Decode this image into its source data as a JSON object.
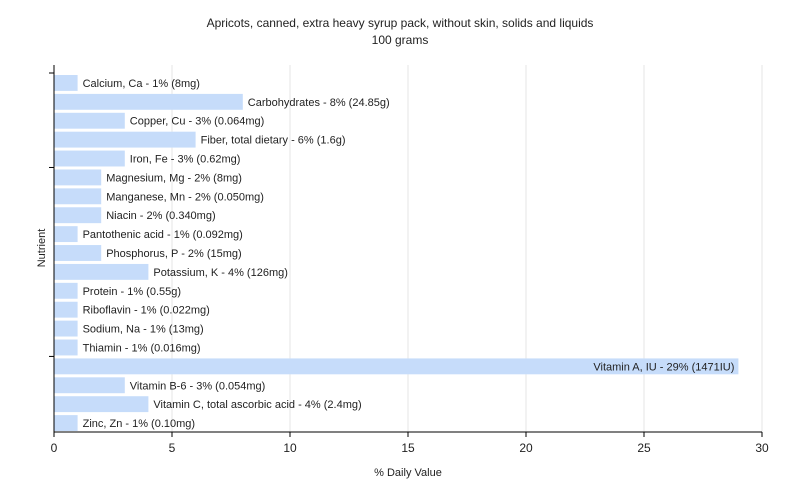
{
  "chart_data": {
    "type": "bar",
    "orientation": "horizontal",
    "title": "Apricots, canned, extra heavy syrup pack, without skin, solids and liquids",
    "subtitle": "100 grams",
    "xlabel": "% Daily Value",
    "ylabel": "Nutrient",
    "xlim": [
      0,
      30
    ],
    "xticks": [
      0,
      5,
      10,
      15,
      20,
      25,
      30
    ],
    "grid": true,
    "bar_color": "#c6dcfa",
    "categories": [
      "Calcium, Ca",
      "Carbohydrates",
      "Copper, Cu",
      "Fiber, total dietary",
      "Iron, Fe",
      "Magnesium, Mg",
      "Manganese, Mn",
      "Niacin",
      "Pantothenic acid",
      "Phosphorus, P",
      "Potassium, K",
      "Protein",
      "Riboflavin",
      "Sodium, Na",
      "Thiamin",
      "Vitamin A, IU",
      "Vitamin B-6",
      "Vitamin C, total ascorbic acid",
      "Zinc, Zn"
    ],
    "values": [
      1,
      8,
      3,
      6,
      3,
      2,
      2,
      2,
      1,
      2,
      4,
      1,
      1,
      1,
      1,
      29,
      3,
      4,
      1
    ],
    "labels": [
      "Calcium, Ca - 1% (8mg)",
      "Carbohydrates - 8% (24.85g)",
      "Copper, Cu - 3% (0.064mg)",
      "Fiber, total dietary - 6% (1.6g)",
      "Iron, Fe - 3% (0.62mg)",
      "Magnesium, Mg - 2% (8mg)",
      "Manganese, Mn - 2% (0.050mg)",
      "Niacin - 2% (0.340mg)",
      "Pantothenic acid - 1% (0.092mg)",
      "Phosphorus, P - 2% (15mg)",
      "Potassium, K - 4% (126mg)",
      "Protein - 1% (0.55g)",
      "Riboflavin - 1% (0.022mg)",
      "Sodium, Na - 1% (13mg)",
      "Thiamin - 1% (0.016mg)",
      "Vitamin A, IU - 29% (1471IU)",
      "Vitamin B-6 - 3% (0.054mg)",
      "Vitamin C, total ascorbic acid - 4% (2.4mg)",
      "Zinc, Zn - 1% (0.10mg)"
    ]
  }
}
